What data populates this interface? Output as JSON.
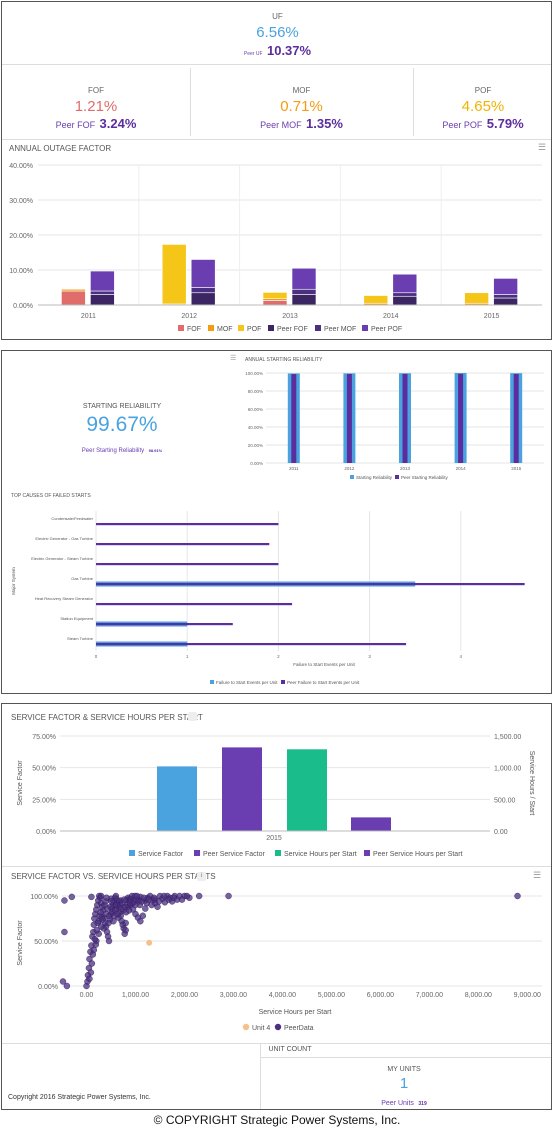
{
  "uf": {
    "label": "UF",
    "value": "6.56%",
    "peer_label": "Peer UF",
    "peer_value": "10.37%"
  },
  "fof": {
    "label": "FOF",
    "value": "1.21%",
    "peer_label": "Peer FOF",
    "peer_value": "3.24%"
  },
  "mof": {
    "label": "MOF",
    "value": "0.71%",
    "peer_label": "Peer MOF",
    "peer_value": "1.35%"
  },
  "pof": {
    "label": "POF",
    "value": "4.65%",
    "peer_label": "Peer POF",
    "peer_value": "5.79%"
  },
  "colors": {
    "fof": "#e06c6c",
    "mof": "#f39c12",
    "pof": "#f5c518",
    "peer_fof": "#3b2563",
    "peer_mof": "#4b2f80",
    "peer_pof": "#6a3eb1",
    "blue": "#4aa3df",
    "purple": "#6a3eb1",
    "green": "#1abc8c",
    "orange_unit": "#f5c08a"
  },
  "menu_icon": "hamburger-menu-icon",
  "annual_outage": {
    "title": "ANNUAL OUTAGE FACTOR",
    "chart_data": {
      "type": "bar",
      "stacked": true,
      "categories": [
        "2011",
        "2012",
        "2013",
        "2014",
        "2015"
      ],
      "yticks": [
        "0.00%",
        "10.00%",
        "20.00%",
        "30.00%",
        "40.00%"
      ],
      "ylim": [
        0,
        40
      ],
      "series": [
        {
          "name": "FOF",
          "stack": "unit",
          "values": [
            4.0,
            0.0,
            1.3,
            0.0,
            0.0
          ]
        },
        {
          "name": "MOF",
          "stack": "unit",
          "values": [
            0.5,
            0.3,
            0.6,
            0.5,
            0.5
          ]
        },
        {
          "name": "POF",
          "stack": "unit",
          "values": [
            0.0,
            17.0,
            1.7,
            2.2,
            3.0
          ]
        },
        {
          "name": "Peer FOF",
          "stack": "peer",
          "values": [
            3.0,
            3.5,
            3.0,
            2.5,
            2.0
          ]
        },
        {
          "name": "Peer MOF",
          "stack": "peer",
          "values": [
            1.0,
            1.5,
            1.5,
            1.0,
            1.0
          ]
        },
        {
          "name": "Peer POF",
          "stack": "peer",
          "values": [
            5.7,
            8.0,
            6.0,
            5.3,
            4.6
          ]
        }
      ]
    }
  },
  "starting": {
    "label": "STARTING RELIABILITY",
    "value": "99.67%",
    "peer_label": "Peer Starting Reliability",
    "peer_value": "98.91%",
    "chart_title": "ANNUAL STARTING RELIABILITY",
    "chart_data": {
      "type": "bar",
      "categories": [
        "2011",
        "2012",
        "2013",
        "2014",
        "2015"
      ],
      "yticks": [
        "0.00%",
        "20.00%",
        "40.00%",
        "60.00%",
        "80.00%",
        "100.00%"
      ],
      "ylim": [
        0,
        100
      ],
      "series": [
        {
          "name": "Starting Reliability",
          "values": [
            99.5,
            99.6,
            99.7,
            100.0,
            99.8
          ]
        },
        {
          "name": "Peer Starting Reliability",
          "values": [
            98.8,
            98.9,
            99.0,
            99.0,
            98.9
          ]
        }
      ]
    }
  },
  "failed_starts": {
    "title": "TOP CAUSES OF FAILED STARTS",
    "ylabel": "Major System",
    "xlabel": "Failure to Start Events per Unit",
    "chart_data": {
      "type": "bar",
      "orientation": "horizontal",
      "categories": [
        "Condensate/Feedwater",
        "Electric Generator - Gas Turbine",
        "Electric Generator - Steam Turbine",
        "Gas Turbine",
        "Heat Recovery Steam Generator",
        "Station Equipment",
        "Steam Turbine"
      ],
      "xticks": [
        "0",
        "1",
        "2",
        "3",
        "4",
        "5"
      ],
      "xlim": [
        0,
        5
      ],
      "series": [
        {
          "name": "Failure to Start Events per Unit",
          "values": [
            0,
            0,
            0,
            3.5,
            0,
            1.0,
            1.0
          ]
        },
        {
          "name": "Peer Failure to Start Events per Unit",
          "values": [
            2.0,
            1.9,
            2.0,
            4.7,
            2.15,
            1.5,
            3.4
          ]
        }
      ]
    }
  },
  "service_factor": {
    "title": "SERVICE FACTOR & SERVICE HOURS PER START",
    "ylabel_left": "Service Factor",
    "ylabel_right": "Service Hours / Start",
    "chart_data": {
      "type": "bar",
      "categories": [
        "2015"
      ],
      "yticks_left": [
        "0.00%",
        "25.00%",
        "50.00%",
        "75.00%"
      ],
      "yticks_right": [
        "0.00",
        "500.00",
        "1,000.00",
        "1,500.00"
      ],
      "ylim_left": [
        0,
        75
      ],
      "ylim_right": [
        0,
        1500
      ],
      "series": [
        {
          "name": "Service Factor",
          "axis": "left",
          "values": [
            51
          ]
        },
        {
          "name": "Peer Service Factor",
          "axis": "left",
          "values": [
            66
          ]
        },
        {
          "name": "Service Hours per Start",
          "axis": "right",
          "values": [
            1290
          ]
        },
        {
          "name": "Peer Service Hours per Start",
          "axis": "right",
          "values": [
            215
          ]
        }
      ]
    }
  },
  "scatter": {
    "title": "SERVICE FACTOR VS. SERVICE HOURS PER STARTS",
    "badge": "i",
    "xlabel": "Service Hours per Start",
    "ylabel": "Service Factor",
    "chart_data": {
      "type": "scatter",
      "xticks": [
        "0.00",
        "1,000.00",
        "2,000.00",
        "3,000.00",
        "4,000.00",
        "5,000.00",
        "6,000.00",
        "7,000.00",
        "8,000.00",
        "9,000.00"
      ],
      "yticks": [
        "0.00%",
        "50.00%",
        "100.00%"
      ],
      "xlim": [
        -500,
        9300
      ],
      "ylim": [
        0,
        100
      ],
      "series": [
        {
          "name": "Unit 4",
          "points": [
            [
              1280,
              48
            ]
          ]
        },
        {
          "name": "PeerData",
          "points": [
            [
              -450,
              95
            ],
            [
              -450,
              60
            ],
            [
              -480,
              5
            ],
            [
              -400,
              0
            ],
            [
              0,
              0
            ],
            [
              20,
              5
            ],
            [
              30,
              12
            ],
            [
              50,
              20
            ],
            [
              60,
              30
            ],
            [
              80,
              38
            ],
            [
              100,
              45
            ],
            [
              120,
              55
            ],
            [
              140,
              60
            ],
            [
              150,
              68
            ],
            [
              160,
              75
            ],
            [
              180,
              80
            ],
            [
              200,
              85
            ],
            [
              220,
              90
            ],
            [
              240,
              95
            ],
            [
              260,
              100
            ],
            [
              280,
              98
            ],
            [
              300,
              92
            ],
            [
              320,
              88
            ],
            [
              340,
              84
            ],
            [
              360,
              76
            ],
            [
              380,
              70
            ],
            [
              400,
              66
            ],
            [
              420,
              60
            ],
            [
              440,
              55
            ],
            [
              460,
              50
            ],
            [
              480,
              74
            ],
            [
              500,
              80
            ],
            [
              520,
              86
            ],
            [
              540,
              90
            ],
            [
              560,
              94
            ],
            [
              580,
              98
            ],
            [
              600,
              100
            ],
            [
              620,
              96
            ],
            [
              640,
              92
            ],
            [
              660,
              88
            ],
            [
              680,
              82
            ],
            [
              700,
              78
            ],
            [
              720,
              72
            ],
            [
              740,
              68
            ],
            [
              760,
              64
            ],
            [
              780,
              58
            ],
            [
              800,
              62
            ],
            [
              820,
              96
            ],
            [
              850,
              98
            ],
            [
              880,
              94
            ],
            [
              900,
              90
            ],
            [
              950,
              85
            ],
            [
              1000,
              80
            ],
            [
              1050,
              76
            ],
            [
              1100,
              72
            ],
            [
              1150,
              78
            ],
            [
              1200,
              95
            ],
            [
              1250,
              98
            ],
            [
              1300,
              100
            ],
            [
              1350,
              96
            ],
            [
              1400,
              92
            ],
            [
              1450,
              88
            ],
            [
              1500,
              100
            ],
            [
              1550,
              97
            ],
            [
              1600,
              93
            ],
            [
              1650,
              100
            ],
            [
              1700,
              98
            ],
            [
              1750,
              94
            ],
            [
              1800,
              100
            ],
            [
              1850,
              96
            ],
            [
              1900,
              100
            ],
            [
              2000,
              100
            ],
            [
              2100,
              98
            ],
            [
              2300,
              100
            ],
            [
              2900,
              100
            ],
            [
              8800,
              100
            ],
            [
              -300,
              99
            ],
            [
              100,
              99
            ],
            [
              300,
              100
            ],
            [
              500,
              97
            ],
            [
              700,
              95
            ],
            [
              900,
              97
            ],
            [
              1100,
              99
            ],
            [
              250,
              72
            ],
            [
              350,
              64
            ],
            [
              450,
              70
            ],
            [
              550,
              72
            ],
            [
              650,
              76
            ],
            [
              750,
              84
            ],
            [
              850,
              88
            ],
            [
              950,
              92
            ],
            [
              1050,
              96
            ],
            [
              150,
              40
            ],
            [
              200,
              50
            ],
            [
              250,
              58
            ],
            [
              300,
              66
            ],
            [
              400,
              80
            ],
            [
              600,
              86
            ],
            [
              800,
              70
            ],
            [
              1000,
              90
            ],
            [
              1200,
              86
            ],
            [
              1400,
              96
            ],
            [
              60,
              8
            ],
            [
              90,
              15
            ],
            [
              110,
              25
            ],
            [
              130,
              35
            ],
            [
              170,
              52
            ],
            [
              190,
              46
            ],
            [
              210,
              62
            ],
            [
              230,
              70
            ],
            [
              270,
              78
            ],
            [
              290,
              82
            ],
            [
              310,
              76
            ],
            [
              330,
              74
            ],
            [
              370,
              90
            ],
            [
              390,
              94
            ],
            [
              410,
              98
            ],
            [
              430,
              86
            ],
            [
              470,
              78
            ],
            [
              490,
              88
            ],
            [
              510,
              94
            ],
            [
              530,
              82
            ],
            [
              570,
              78
            ],
            [
              590,
              84
            ],
            [
              610,
              90
            ],
            [
              630,
              80
            ],
            [
              670,
              94
            ],
            [
              690,
              90
            ],
            [
              710,
              86
            ],
            [
              730,
              92
            ],
            [
              770,
              96
            ],
            [
              790,
              88
            ],
            [
              810,
              82
            ],
            [
              830,
              90
            ],
            [
              870,
              84
            ],
            [
              890,
              92
            ],
            [
              910,
              96
            ],
            [
              930,
              100
            ],
            [
              970,
              94
            ],
            [
              990,
              100
            ],
            [
              1010,
              96
            ],
            [
              1030,
              100
            ],
            [
              1070,
              94
            ],
            [
              1090,
              90
            ],
            [
              1130,
              94
            ],
            [
              1170,
              98
            ],
            [
              1230,
              92
            ],
            [
              1270,
              96
            ],
            [
              1330,
              90
            ],
            [
              1380,
              98
            ],
            [
              1480,
              94
            ],
            [
              1580,
              100
            ],
            [
              1680,
              96
            ],
            [
              1780,
              98
            ],
            [
              1950,
              96
            ],
            [
              2050,
              100
            ]
          ]
        }
      ]
    }
  },
  "unit_count": {
    "title": "UNIT COUNT",
    "my_units_label": "MY UNITS",
    "my_units_value": "1",
    "peer_label": "Peer Units",
    "peer_value": "319"
  },
  "inner_copyright": "Copyright 2016 Strategic Power Systems, Inc.",
  "footer_copyright": "© COPYRIGHT Strategic Power Systems, Inc."
}
